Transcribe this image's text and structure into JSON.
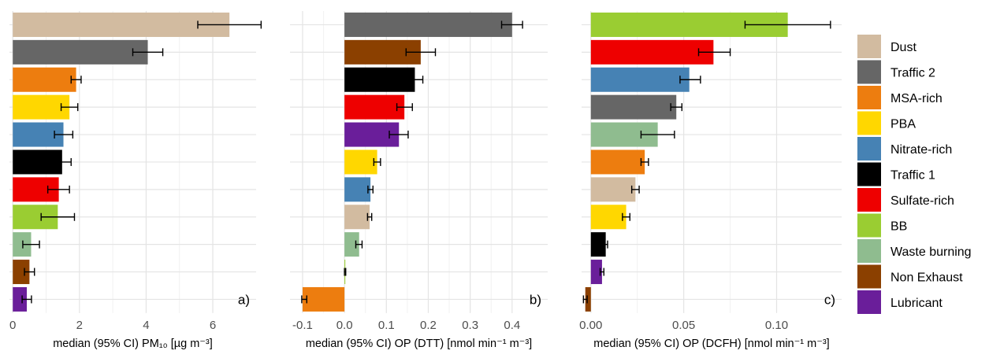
{
  "chart_data": [
    {
      "type": "bar",
      "orientation": "horizontal",
      "panel_label": "a)",
      "xlabel": "median (95% CI) PM₁₀ [µg m⁻³]",
      "xlim": [
        -0.1,
        7.3
      ],
      "xticks": [
        0,
        2,
        4,
        6
      ],
      "xtick_labels": [
        "0",
        "2",
        "4",
        "6"
      ],
      "grid": true,
      "bars": [
        {
          "source": "Dust",
          "value": 6.5,
          "ci_low": 5.55,
          "ci_high": 7.45
        },
        {
          "source": "Traffic 2",
          "value": 4.05,
          "ci_low": 3.6,
          "ci_high": 4.5
        },
        {
          "source": "MSA-rich",
          "value": 1.9,
          "ci_low": 1.75,
          "ci_high": 2.05
        },
        {
          "source": "PBA",
          "value": 1.7,
          "ci_low": 1.45,
          "ci_high": 1.95
        },
        {
          "source": "Nitrate-rich",
          "value": 1.52,
          "ci_low": 1.25,
          "ci_high": 1.8
        },
        {
          "source": "Traffic 1",
          "value": 1.48,
          "ci_low": 1.2,
          "ci_high": 1.75
        },
        {
          "source": "Sulfate-rich",
          "value": 1.38,
          "ci_low": 1.05,
          "ci_high": 1.7
        },
        {
          "source": "BB",
          "value": 1.35,
          "ci_low": 0.85,
          "ci_high": 1.85
        },
        {
          "source": "Waste burning",
          "value": 0.55,
          "ci_low": 0.3,
          "ci_high": 0.8
        },
        {
          "source": "Non Exhaust",
          "value": 0.5,
          "ci_low": 0.35,
          "ci_high": 0.65
        },
        {
          "source": "Lubricant",
          "value": 0.42,
          "ci_low": 0.28,
          "ci_high": 0.56
        }
      ]
    },
    {
      "type": "bar",
      "orientation": "horizontal",
      "panel_label": "b)",
      "xlabel": "median (95% CI) OP (DTT) [nmol min⁻¹ m⁻³]",
      "xlim": [
        -0.13,
        0.485
      ],
      "xticks": [
        -0.1,
        0.0,
        0.1,
        0.2,
        0.3,
        0.4
      ],
      "xtick_labels": [
        "-0.1",
        "0.0",
        "0.1",
        "0.2",
        "0.3",
        "0.4"
      ],
      "grid": true,
      "bars": [
        {
          "source": "Traffic 2",
          "value": 0.4,
          "ci_low": 0.375,
          "ci_high": 0.425
        },
        {
          "source": "Non Exhaust",
          "value": 0.182,
          "ci_low": 0.147,
          "ci_high": 0.217
        },
        {
          "source": "Traffic 1",
          "value": 0.168,
          "ci_low": 0.15,
          "ci_high": 0.187
        },
        {
          "source": "Sulfate-rich",
          "value": 0.143,
          "ci_low": 0.125,
          "ci_high": 0.162
        },
        {
          "source": "Lubricant",
          "value": 0.13,
          "ci_low": 0.107,
          "ci_high": 0.152
        },
        {
          "source": "PBA",
          "value": 0.078,
          "ci_low": 0.07,
          "ci_high": 0.086
        },
        {
          "source": "Nitrate-rich",
          "value": 0.062,
          "ci_low": 0.056,
          "ci_high": 0.068
        },
        {
          "source": "Dust",
          "value": 0.06,
          "ci_low": 0.055,
          "ci_high": 0.065
        },
        {
          "source": "Waste burning",
          "value": 0.035,
          "ci_low": 0.027,
          "ci_high": 0.042
        },
        {
          "source": "BB",
          "value": 0.002,
          "ci_low": 0.0,
          "ci_high": 0.003
        },
        {
          "source": "MSA-rich",
          "value": -0.1,
          "ci_low": -0.102,
          "ci_high": -0.09
        }
      ]
    },
    {
      "type": "bar",
      "orientation": "horizontal",
      "panel_label": "c)",
      "xlabel": "median (95% CI) OP (DCFH) [nmol min⁻¹ m⁻³]",
      "xlim": [
        -0.005,
        0.135
      ],
      "xticks": [
        0.0,
        0.05,
        0.1
      ],
      "xtick_labels": [
        "0.00",
        "0.05",
        "0.10"
      ],
      "grid": true,
      "bars": [
        {
          "source": "BB",
          "value": 0.106,
          "ci_low": 0.083,
          "ci_high": 0.129
        },
        {
          "source": "Sulfate-rich",
          "value": 0.066,
          "ci_low": 0.058,
          "ci_high": 0.075
        },
        {
          "source": "Nitrate-rich",
          "value": 0.053,
          "ci_low": 0.048,
          "ci_high": 0.059
        },
        {
          "source": "Traffic 2",
          "value": 0.046,
          "ci_low": 0.043,
          "ci_high": 0.049
        },
        {
          "source": "Waste burning",
          "value": 0.036,
          "ci_low": 0.027,
          "ci_high": 0.045
        },
        {
          "source": "MSA-rich",
          "value": 0.029,
          "ci_low": 0.027,
          "ci_high": 0.031
        },
        {
          "source": "Dust",
          "value": 0.024,
          "ci_low": 0.022,
          "ci_high": 0.026
        },
        {
          "source": "PBA",
          "value": 0.019,
          "ci_low": 0.017,
          "ci_high": 0.021
        },
        {
          "source": "Traffic 1",
          "value": 0.008,
          "ci_low": 0.007,
          "ci_high": 0.009
        },
        {
          "source": "Lubricant",
          "value": 0.006,
          "ci_low": 0.005,
          "ci_high": 0.007
        },
        {
          "source": "Non Exhaust",
          "value": -0.003,
          "ci_low": -0.004,
          "ci_high": -0.002
        }
      ]
    }
  ],
  "legend": {
    "position": "right",
    "items": [
      {
        "label": "Dust",
        "color": "#D2BBA0"
      },
      {
        "label": "Traffic 2",
        "color": "#666666"
      },
      {
        "label": "MSA-rich",
        "color": "#ED7D0F"
      },
      {
        "label": "PBA",
        "color": "#FFD700"
      },
      {
        "label": "Nitrate-rich",
        "color": "#4682B4"
      },
      {
        "label": "Traffic 1",
        "color": "#000000"
      },
      {
        "label": "Sulfate-rich",
        "color": "#EE0000"
      },
      {
        "label": "BB",
        "color": "#9ACD32"
      },
      {
        "label": "Waste burning",
        "color": "#8FBC8F"
      },
      {
        "label": "Non Exhaust",
        "color": "#8B4000"
      },
      {
        "label": "Lubricant",
        "color": "#6A1E9A"
      }
    ]
  }
}
